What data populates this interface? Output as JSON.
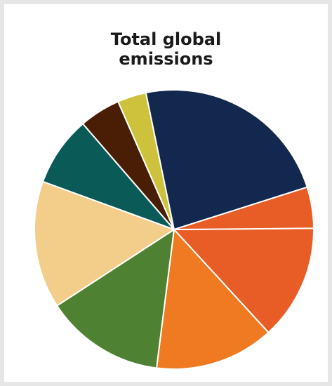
{
  "chart_data": {
    "type": "pie",
    "title": "Total global emissions",
    "title_lines": [
      "Total global",
      "emissions"
    ],
    "legend": "none",
    "slices": [
      {
        "value": 14.0,
        "color": "#e85d25"
      },
      {
        "value": 14.5,
        "color": "#f07a22"
      },
      {
        "value": 14.5,
        "color": "#4e8132"
      },
      {
        "value": 15.5,
        "color": "#f3cd8a"
      },
      {
        "value": 8.5,
        "color": "#0a5a58"
      },
      {
        "value": 5.0,
        "color": "#4a1e04"
      },
      {
        "value": 3.5,
        "color": "#cec23c"
      },
      {
        "value": 24.5,
        "color": "#13284f"
      },
      {
        "value": 5.0,
        "color": "#e85d25"
      }
    ]
  }
}
